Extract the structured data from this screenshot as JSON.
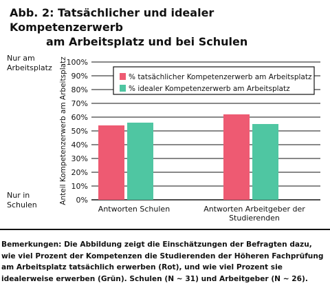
{
  "title": {
    "line1": "Abb. 2: Tatsächlicher und idealer Kompetenzerwerb",
    "line2": "am Arbeitsplatz und bei Schulen"
  },
  "side_labels": {
    "top": "Nur am\nArbeitsplatz",
    "bottom": "Nur in\nSchulen"
  },
  "remarks": "Bemerkungen: Die Abbildung zeigt die Einschätzungen der Befragten dazu, wie viel Prozent der Kompetenzen die Studierenden der Höheren Fachprüfung am Arbeitsplatz tatsächlich erwerben (Rot), und wie viel Prozent sie idealerweise erwerben (Grün). Schulen (N ~ 31) und Arbeitgeber (N ~ 26).",
  "colors": {
    "red": "#ee5a72",
    "green": "#4fc6a2",
    "axis": "#111111"
  },
  "chart_data": {
    "type": "bar",
    "categories": [
      "Antworten Schulen",
      "Antworten Arbeitgeber der\nStudierenden"
    ],
    "series": [
      {
        "name": "% tatsächlicher Kompetenzerwerb am Arbeitsplatz",
        "values": [
          54,
          62
        ],
        "color": "#ee5a72"
      },
      {
        "name": "% idealer Kompetenzerwerb am Arbeitsplatz",
        "values": [
          56,
          55
        ],
        "color": "#4fc6a2"
      }
    ],
    "ylabel": "Anteil Kompetenzerwerb am Arbeitsplatz",
    "ylim": [
      0,
      100
    ],
    "yticks": [
      0,
      10,
      20,
      30,
      40,
      50,
      60,
      70,
      80,
      90,
      100
    ],
    "ytick_labels": [
      "0%",
      "10%",
      "20%",
      "30%",
      "40%",
      "50%",
      "60%",
      "70%",
      "80%",
      "90%",
      "100%"
    ],
    "grid": true,
    "legend": "top-right"
  }
}
